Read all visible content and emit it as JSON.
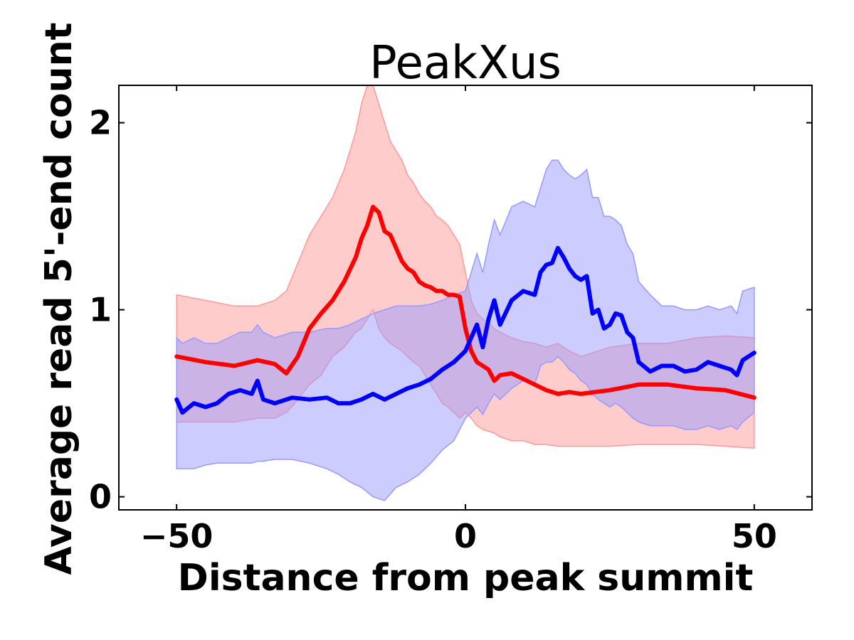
{
  "chart_data": {
    "type": "line",
    "title": "PeakXus",
    "xlabel": "Distance from peak summit",
    "ylabel": "Average read 5'-end count",
    "xlim": [
      -60,
      60
    ],
    "ylim": [
      -0.07,
      2.2
    ],
    "xticks": [
      -50,
      0,
      50
    ],
    "xtick_labels": [
      "−50",
      "0",
      "50"
    ],
    "yticks": [
      0,
      1,
      2
    ],
    "ytick_labels": [
      "0",
      "1",
      "2"
    ],
    "grid": false,
    "legend": "none",
    "series": [
      {
        "color": "#ff0000",
        "band_color": "#ff9999",
        "x": [
          -50,
          -45,
          -40,
          -36,
          -33,
          -31,
          -29,
          -27,
          -25,
          -23,
          -21,
          -19,
          -18,
          -17,
          -16,
          -15,
          -14,
          -13,
          -12,
          -11,
          -10,
          -9,
          -8,
          -7,
          -6,
          -5,
          -4,
          -3,
          -2,
          -1,
          0,
          1,
          2,
          3,
          4,
          5,
          6,
          8,
          10,
          12,
          14,
          16,
          18,
          20,
          25,
          30,
          35,
          40,
          45,
          50
        ],
        "y": [
          0.75,
          0.72,
          0.7,
          0.73,
          0.71,
          0.66,
          0.75,
          0.9,
          0.98,
          1.05,
          1.15,
          1.28,
          1.38,
          1.45,
          1.55,
          1.52,
          1.42,
          1.4,
          1.33,
          1.26,
          1.22,
          1.2,
          1.15,
          1.13,
          1.12,
          1.1,
          1.1,
          1.08,
          1.08,
          1.07,
          0.9,
          0.78,
          0.72,
          0.7,
          0.68,
          0.62,
          0.65,
          0.66,
          0.63,
          0.6,
          0.57,
          0.55,
          0.56,
          0.55,
          0.57,
          0.6,
          0.6,
          0.58,
          0.57,
          0.53
        ],
        "lower": [
          0.4,
          0.4,
          0.4,
          0.42,
          0.42,
          0.45,
          0.52,
          0.6,
          0.65,
          0.75,
          0.8,
          0.88,
          0.9,
          0.95,
          1.0,
          0.9,
          0.85,
          0.82,
          0.8,
          0.78,
          0.75,
          0.72,
          0.7,
          0.65,
          0.6,
          0.55,
          0.5,
          0.48,
          0.45,
          0.42,
          0.45,
          0.42,
          0.38,
          0.36,
          0.35,
          0.34,
          0.32,
          0.3,
          0.3,
          0.28,
          0.28,
          0.27,
          0.27,
          0.27,
          0.27,
          0.28,
          0.28,
          0.28,
          0.27,
          0.26
        ],
        "upper": [
          1.08,
          1.05,
          1.02,
          1.02,
          1.05,
          1.1,
          1.25,
          1.4,
          1.5,
          1.6,
          1.75,
          1.95,
          2.1,
          2.2,
          2.2,
          2.1,
          2.0,
          1.9,
          1.85,
          1.8,
          1.72,
          1.68,
          1.62,
          1.58,
          1.55,
          1.5,
          1.48,
          1.45,
          1.4,
          1.35,
          1.2,
          1.05,
          0.98,
          0.95,
          0.93,
          0.9,
          0.88,
          0.85,
          0.83,
          0.82,
          0.8,
          0.82,
          0.78,
          0.75,
          0.8,
          0.82,
          0.82,
          0.85,
          0.86,
          0.85
        ]
      },
      {
        "color": "#0000ff",
        "band_color": "#9999ff",
        "x": [
          -50,
          -49,
          -47,
          -45,
          -43,
          -41,
          -39,
          -37,
          -36,
          -35,
          -33,
          -30,
          -27,
          -24,
          -22,
          -20,
          -18,
          -16,
          -14,
          -12,
          -10,
          -8,
          -6,
          -4,
          -2,
          0,
          1,
          2,
          3,
          4,
          5,
          6,
          8,
          10,
          12,
          13,
          14,
          15,
          16,
          17,
          18,
          19,
          20,
          21,
          22,
          23,
          24,
          25,
          26,
          27,
          28,
          29,
          30,
          32,
          34,
          36,
          38,
          40,
          42,
          44,
          46,
          47,
          48,
          50
        ],
        "y": [
          0.52,
          0.45,
          0.5,
          0.48,
          0.5,
          0.55,
          0.57,
          0.55,
          0.62,
          0.52,
          0.5,
          0.53,
          0.52,
          0.53,
          0.5,
          0.5,
          0.52,
          0.55,
          0.52,
          0.55,
          0.58,
          0.6,
          0.63,
          0.68,
          0.72,
          0.78,
          0.85,
          0.92,
          0.8,
          0.95,
          1.05,
          0.92,
          1.05,
          1.1,
          1.08,
          1.2,
          1.24,
          1.25,
          1.33,
          1.28,
          1.22,
          1.18,
          1.16,
          1.18,
          0.98,
          1.0,
          0.9,
          0.92,
          0.98,
          0.97,
          0.88,
          0.85,
          0.72,
          0.67,
          0.7,
          0.7,
          0.67,
          0.68,
          0.72,
          0.7,
          0.68,
          0.65,
          0.73,
          0.77
        ],
        "lower": [
          0.15,
          0.15,
          0.15,
          0.17,
          0.18,
          0.18,
          0.18,
          0.18,
          0.19,
          0.19,
          0.2,
          0.2,
          0.18,
          0.15,
          0.12,
          0.08,
          0.05,
          0.0,
          -0.02,
          0.05,
          0.08,
          0.12,
          0.18,
          0.25,
          0.3,
          0.42,
          0.45,
          0.48,
          0.44,
          0.5,
          0.55,
          0.52,
          0.58,
          0.62,
          0.6,
          0.7,
          0.72,
          0.72,
          0.75,
          0.72,
          0.68,
          0.66,
          0.62,
          0.6,
          0.55,
          0.52,
          0.5,
          0.48,
          0.5,
          0.48,
          0.45,
          0.42,
          0.4,
          0.38,
          0.38,
          0.38,
          0.36,
          0.36,
          0.38,
          0.36,
          0.38,
          0.36,
          0.4,
          0.45
        ],
        "upper": [
          0.85,
          0.82,
          0.85,
          0.82,
          0.82,
          0.85,
          0.88,
          0.88,
          0.92,
          0.88,
          0.85,
          0.88,
          0.88,
          0.9,
          0.9,
          0.92,
          0.95,
          0.98,
          1.0,
          1.02,
          1.02,
          1.02,
          1.03,
          1.05,
          1.08,
          1.1,
          1.2,
          1.3,
          1.2,
          1.35,
          1.48,
          1.4,
          1.55,
          1.58,
          1.55,
          1.65,
          1.75,
          1.8,
          1.8,
          1.75,
          1.72,
          1.7,
          1.72,
          1.75,
          1.6,
          1.6,
          1.5,
          1.5,
          1.48,
          1.45,
          1.35,
          1.3,
          1.15,
          1.08,
          1.02,
          1.02,
          1.0,
          1.0,
          1.02,
          1.0,
          1.02,
          0.98,
          1.1,
          1.12
        ]
      }
    ]
  }
}
